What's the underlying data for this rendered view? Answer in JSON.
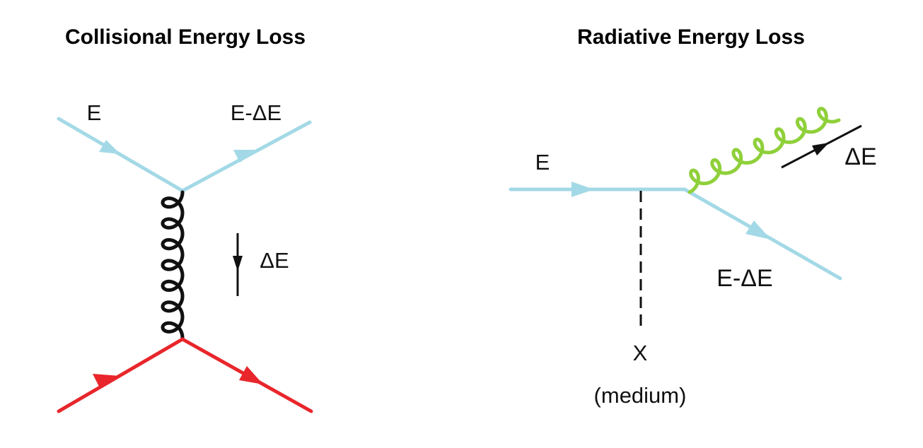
{
  "colors": {
    "quark_incoming": "#a3d9e6",
    "quark_target": "#e8262b",
    "gluon_exchange": "#111111",
    "gluon_radiated": "#8fd03a",
    "medium_line": "#111111",
    "text": "#111111"
  },
  "collisional": {
    "title": "Collisional Energy Loss",
    "label_incoming": "E",
    "label_outgoing": "E-ΔE",
    "label_transfer": "ΔE"
  },
  "radiative": {
    "title": "Radiative Energy Loss",
    "label_incoming": "E",
    "label_outgoing": "E-ΔE",
    "label_gluon": "ΔE",
    "label_medium": "X",
    "label_medium_note": "(medium)"
  }
}
